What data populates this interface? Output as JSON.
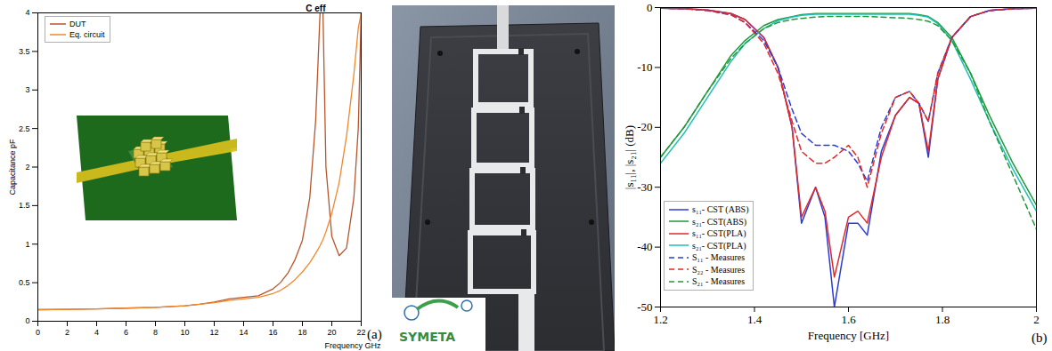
{
  "panel_labels": [
    "(a)",
    "(b)"
  ],
  "photo": {
    "logo": "SYMETA"
  },
  "chart_data": [
    {
      "type": "line",
      "title": "C eff",
      "x_label": "Frequency GHz",
      "y_label": "Capacitance pF",
      "x": [
        0,
        2,
        4,
        6,
        8,
        10,
        11,
        12,
        13,
        14,
        15,
        16,
        16.5,
        17,
        17.5,
        18,
        18.5,
        18.9,
        19.2,
        19.3,
        19.4,
        19.6,
        20,
        20.5,
        21,
        21.5,
        21.8,
        22
      ],
      "series": [
        {
          "name": "DUT",
          "color": "#b8562b",
          "line_style": "solid",
          "values": [
            0.15,
            0.155,
            0.16,
            0.17,
            0.18,
            0.2,
            0.22,
            0.25,
            0.29,
            0.31,
            0.33,
            0.42,
            0.5,
            0.62,
            0.8,
            1.05,
            1.6,
            2.6,
            4,
            null,
            4,
            2.0,
            1.1,
            0.85,
            0.95,
            1.6,
            2.5,
            4
          ]
        },
        {
          "name": "Eq. circuit",
          "color": "#f0892e",
          "line_style": "solid",
          "values": [
            0.15,
            0.155,
            0.16,
            0.17,
            0.18,
            0.2,
            0.22,
            0.24,
            0.27,
            0.29,
            0.31,
            0.36,
            0.4,
            0.46,
            0.54,
            0.64,
            0.76,
            0.88,
            0.98,
            1.02,
            1.06,
            1.16,
            1.4,
            1.8,
            2.4,
            3.2,
            3.8,
            4
          ]
        }
      ],
      "xlim": [
        0,
        22
      ],
      "ylim": [
        0,
        4
      ],
      "xticks": [
        0,
        2,
        4,
        6,
        8,
        10,
        12,
        14,
        16,
        18,
        20,
        22
      ],
      "yticks": [
        0,
        0.5,
        1,
        1.5,
        2,
        2.5,
        3,
        3.5,
        4
      ],
      "grid": false,
      "legend": "upper left"
    },
    {
      "type": "line",
      "x_label": "Frequency [GHz]",
      "y_label": "|s₁₁|, |s₂₁| (dB)",
      "x": [
        1.2,
        1.25,
        1.3,
        1.35,
        1.38,
        1.42,
        1.45,
        1.48,
        1.5,
        1.53,
        1.55,
        1.57,
        1.6,
        1.62,
        1.64,
        1.67,
        1.7,
        1.73,
        1.75,
        1.77,
        1.79,
        1.82,
        1.86,
        1.9,
        1.95,
        2.0
      ],
      "series": [
        {
          "name": "s₁₁- CST (ABS)",
          "color": "#2b3bd6",
          "line_style": "solid",
          "values": [
            -0.1,
            -0.2,
            -0.4,
            -1,
            -2,
            -5,
            -10,
            -20,
            -36,
            -30,
            -35,
            -50,
            -36,
            -36,
            -38,
            -24,
            -18,
            -15,
            -16,
            -25,
            -12,
            -5,
            -1.5,
            -0.5,
            -0.2,
            -0.1
          ]
        },
        {
          "name": "s₂₁- CST(ABS)",
          "color": "#1f9a3a",
          "line_style": "solid",
          "values": [
            -25,
            -20,
            -14,
            -8,
            -5.5,
            -3,
            -2,
            -1.5,
            -1.2,
            -1,
            -1,
            -1,
            -1,
            -1,
            -1,
            -1,
            -1,
            -1,
            -1.2,
            -1.5,
            -2.5,
            -5,
            -11,
            -18,
            -26,
            -33
          ]
        },
        {
          "name": "s₁₁- CST(PLA)",
          "color": "#e02a2a",
          "line_style": "solid",
          "values": [
            -0.1,
            -0.2,
            -0.4,
            -1,
            -2,
            -5,
            -10,
            -20,
            -35,
            -30,
            -34,
            -45,
            -35,
            -34,
            -36,
            -25,
            -18,
            -15,
            -16,
            -24,
            -12,
            -5,
            -1.5,
            -0.5,
            -0.2,
            -0.1
          ]
        },
        {
          "name": "s₂₁- CST(PLA)",
          "color": "#20c0b8",
          "line_style": "solid",
          "values": [
            -26,
            -21,
            -15,
            -9,
            -6,
            -3.5,
            -2.2,
            -1.6,
            -1.3,
            -1.1,
            -1.1,
            -1.1,
            -1.1,
            -1.1,
            -1.1,
            -1.1,
            -1.1,
            -1.1,
            -1.3,
            -1.6,
            -2.7,
            -5.5,
            -12,
            -19,
            -27,
            -34
          ]
        },
        {
          "name": "S₁₁ - Measures",
          "color": "#2b3bd6",
          "line_style": "dashed",
          "values": [
            -0.1,
            -0.2,
            -0.5,
            -1.2,
            -2.5,
            -5.5,
            -10,
            -17,
            -21,
            -23,
            -23,
            -23,
            -24,
            -26,
            -29,
            -20,
            -15,
            -14,
            -16,
            -19,
            -11,
            -5,
            -1.5,
            -0.5,
            -0.2,
            -0.1
          ]
        },
        {
          "name": "S₂₂ - Measures",
          "color": "#e02a2a",
          "line_style": "dashed",
          "values": [
            -0.1,
            -0.2,
            -0.5,
            -1.2,
            -2.5,
            -6,
            -11,
            -19,
            -24,
            -26,
            -26,
            -25,
            -23,
            -25,
            -30,
            -21,
            -15,
            -14,
            -16,
            -19,
            -11,
            -5,
            -1.5,
            -0.5,
            -0.2,
            -0.1
          ]
        },
        {
          "name": "S₂₁ - Measures",
          "color": "#1f9a3a",
          "line_style": "dashed",
          "values": [
            -25,
            -20,
            -14,
            -8.5,
            -6,
            -3.5,
            -2.5,
            -2,
            -1.8,
            -1.6,
            -1.5,
            -1.5,
            -1.5,
            -1.5,
            -1.5,
            -1.6,
            -1.7,
            -1.8,
            -2,
            -2.3,
            -3,
            -5.5,
            -11,
            -19,
            -28,
            -37
          ]
        }
      ],
      "xlim": [
        1.2,
        2
      ],
      "ylim": [
        -50,
        0
      ],
      "xticks": [
        1.2,
        1.4,
        1.6,
        1.8,
        2
      ],
      "yticks": [
        -50,
        -40,
        -30,
        -20,
        -10,
        0
      ],
      "grid": false,
      "legend": "lower left"
    }
  ]
}
